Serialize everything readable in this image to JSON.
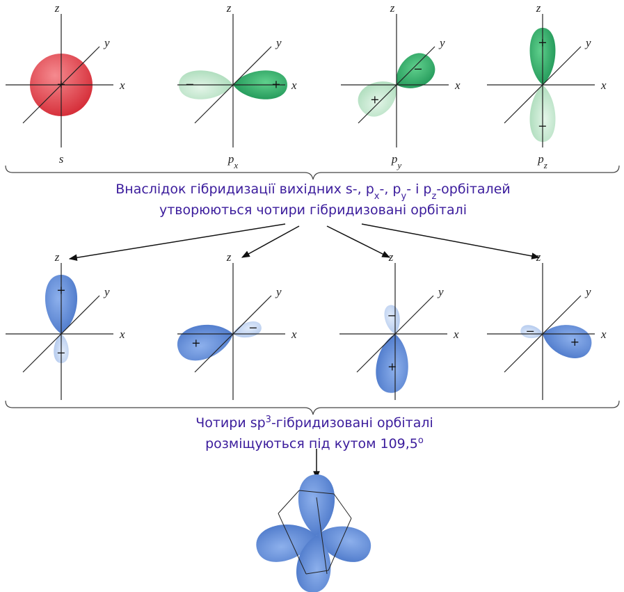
{
  "top_panels": [
    {
      "axes": {
        "z": "z",
        "y": "y",
        "x": "x"
      },
      "signs": [
        "+"
      ],
      "label": {
        "base": "s"
      }
    },
    {
      "axes": {
        "z": "z",
        "y": "y",
        "x": "x"
      },
      "signs": [
        "+",
        "−"
      ],
      "label": {
        "base": "p",
        "sub": "x"
      }
    },
    {
      "axes": {
        "z": "z",
        "y": "y",
        "x": "x"
      },
      "signs": [
        "−",
        "+"
      ],
      "label": {
        "base": "p",
        "sub": "y"
      }
    },
    {
      "axes": {
        "z": "z",
        "y": "y",
        "x": "x"
      },
      "signs": [
        "+",
        "−"
      ],
      "label": {
        "base": "p",
        "sub": "z"
      }
    }
  ],
  "caption_1": {
    "line_1": [
      "Внаслідок гібридизації вихідних s-, p",
      "x",
      "-, p",
      "y",
      "- і p",
      "z",
      "-орбіталей"
    ],
    "line_2": "утворюються чотири гібридизовані орбіталі"
  },
  "bottom_panels": [
    {
      "axes": {
        "z": "z",
        "y": "y",
        "x": "x"
      },
      "signs": [
        "+",
        "−"
      ]
    },
    {
      "axes": {
        "z": "z",
        "y": "y",
        "x": "x"
      },
      "signs": [
        "+",
        "−"
      ]
    },
    {
      "axes": {
        "z": "z",
        "y": "y",
        "x": "x"
      },
      "signs": [
        "+",
        "−"
      ]
    },
    {
      "axes": {
        "z": "z",
        "y": "y",
        "x": "x"
      },
      "signs": [
        "+",
        "−"
      ]
    }
  ],
  "caption_2": {
    "line_1": [
      "Чотири sp",
      "3",
      "-гібридизовані орбіталі"
    ],
    "line_2": [
      "розміщуються під кутом 109,5",
      "o"
    ]
  }
}
